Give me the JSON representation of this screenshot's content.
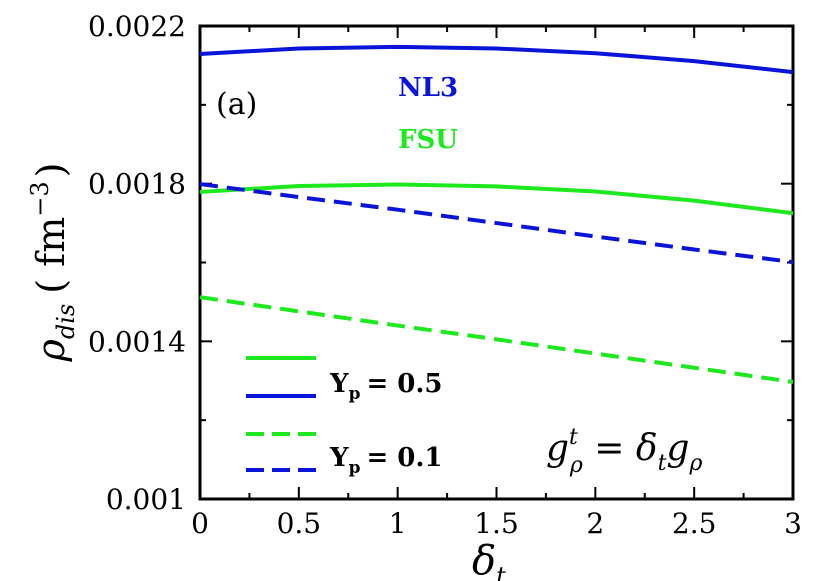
{
  "chart_data": {
    "type": "line",
    "panel_label": "(a)",
    "xlabel": "δ",
    "xlabel_sub": "t",
    "ylabel": "ρ",
    "ylabel_sub": "dis",
    "ylabel_unit": "( fm",
    "ylabel_unit_exp": "−3",
    "ylabel_unit_close": ")",
    "xlim": [
      0,
      3
    ],
    "ylim": [
      0.001,
      0.0022
    ],
    "xticks": [
      "0",
      "0.5",
      "1",
      "1.5",
      "2",
      "2.5",
      "3"
    ],
    "yticks": [
      "0.001",
      "0.0014",
      "0.0018",
      "0.0022"
    ],
    "grid": false,
    "series": [
      {
        "name": "NL3",
        "yp": "0.5",
        "color": "#0a14d8",
        "dash": "solid",
        "x": [
          0,
          0.5,
          1.0,
          1.5,
          2.0,
          2.5,
          3.0
        ],
        "y": [
          0.002129,
          0.002143,
          0.002147,
          0.002143,
          0.002131,
          0.002111,
          0.002083
        ]
      },
      {
        "name": "FSU",
        "yp": "0.5",
        "color": "#1ee81e",
        "dash": "solid",
        "x": [
          0,
          0.5,
          1.0,
          1.5,
          2.0,
          2.5,
          3.0
        ],
        "y": [
          0.001779,
          0.001794,
          0.001798,
          0.001793,
          0.00178,
          0.001757,
          0.001725
        ]
      },
      {
        "name": "NL3",
        "yp": "0.1",
        "color": "#0a14d8",
        "dash": "dashed",
        "x": [
          0,
          0.5,
          1.0,
          1.5,
          2.0,
          2.5,
          3.0
        ],
        "y": [
          0.001799,
          0.001766,
          0.001734,
          0.0017,
          0.001666,
          0.001633,
          0.001601
        ]
      },
      {
        "name": "FSU",
        "yp": "0.1",
        "color": "#1ee81e",
        "dash": "dashed",
        "x": [
          0,
          0.5,
          1.0,
          1.5,
          2.0,
          2.5,
          3.0
        ],
        "y": [
          0.001512,
          0.001476,
          0.00144,
          0.001405,
          0.001369,
          0.001333,
          0.001297
        ]
      }
    ],
    "annotations": {
      "nl3_label": "NL3",
      "fsu_label": "FSU",
      "nl3_color": "#0a14d8",
      "fsu_color": "#1ee81e"
    },
    "legend": {
      "placement": "bottom-left",
      "entry1_label": "Y",
      "entry1_sub": "p",
      "entry1_value": "= 0.5",
      "entry2_label": "Y",
      "entry2_sub": "p",
      "entry2_value": "= 0.1"
    },
    "formula": {
      "g": "g",
      "sup": "t",
      "sub": "ρ",
      "eq": " = ",
      "delta": "δ",
      "delta_sub": "t",
      "g2": "g",
      "g2_sub": "ρ"
    }
  }
}
